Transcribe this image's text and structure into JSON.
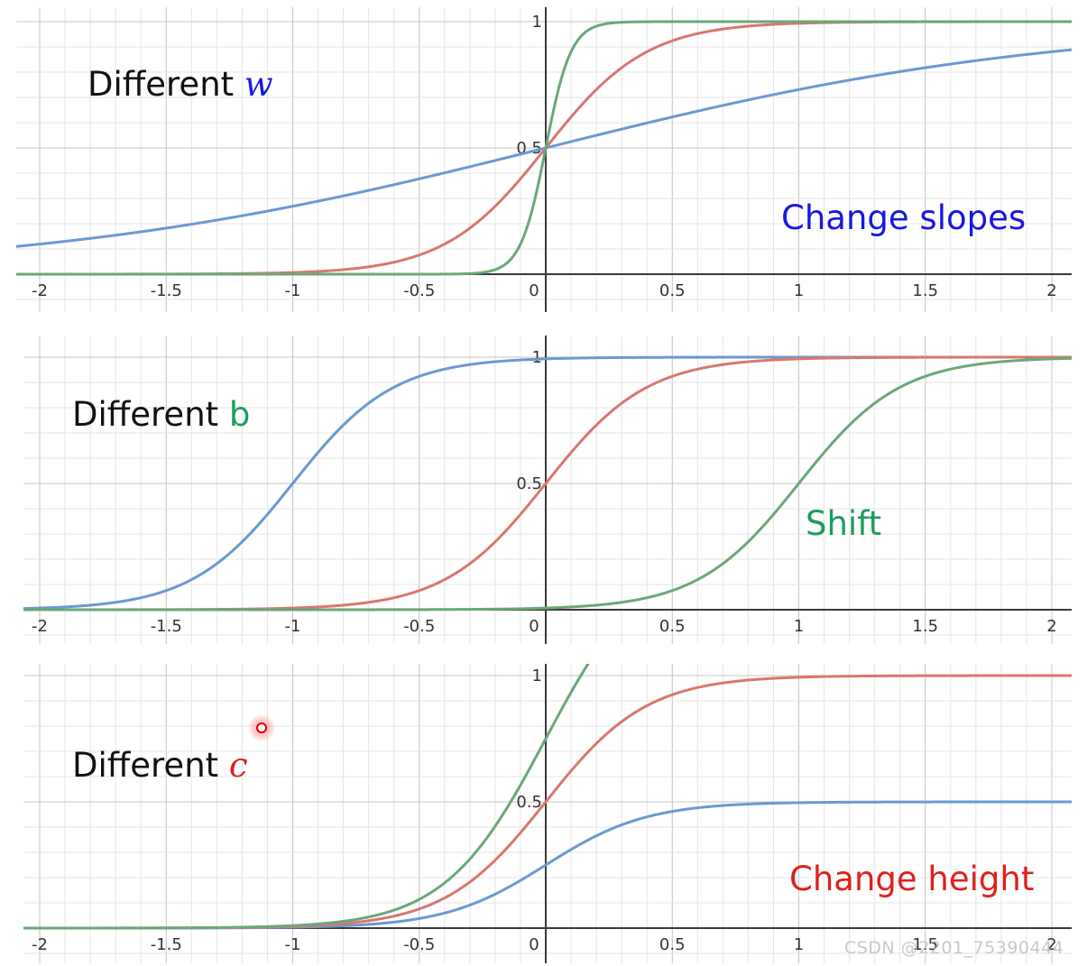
{
  "chart_data": [
    {
      "type": "line",
      "annotation": "Change slopes",
      "label_prefix": "Different ",
      "label_var": "w",
      "var_color": "#1818e0",
      "annotation_color": "#1818e0",
      "xlim": [
        -2.1,
        2.1
      ],
      "ylim": [
        0,
        1
      ],
      "x_ticks": [
        "-2",
        "-1.5",
        "-1",
        "-0.5",
        "0",
        "0.5",
        "1",
        "1.5",
        "2"
      ],
      "y_ticks": [
        "0.5",
        "1"
      ],
      "grid": true,
      "series": [
        {
          "color": "#6a99d0",
          "params": {
            "c": 1,
            "b": 0,
            "w": 1
          }
        },
        {
          "color": "#d9776f",
          "params": {
            "c": 1,
            "b": 0,
            "w": 5
          }
        },
        {
          "color": "#6aa77a",
          "params": {
            "c": 1,
            "b": 0,
            "w": 20
          }
        }
      ]
    },
    {
      "type": "line",
      "annotation": "Shift",
      "label_prefix": "Different ",
      "label_var": "b",
      "var_color": "#1f9b5c",
      "annotation_color": "#1f9b5c",
      "xlim": [
        -2.1,
        2.1
      ],
      "ylim": [
        0,
        1
      ],
      "x_ticks": [
        "-2",
        "-1.5",
        "-1",
        "-0.5",
        "0",
        "0.5",
        "1",
        "1.5",
        "2"
      ],
      "y_ticks": [
        "0.5",
        "1"
      ],
      "grid": true,
      "series": [
        {
          "color": "#6a99d0",
          "params": {
            "c": 1,
            "b": 5,
            "w": 5
          }
        },
        {
          "color": "#d9776f",
          "params": {
            "c": 1,
            "b": 0,
            "w": 5
          }
        },
        {
          "color": "#6aa77a",
          "params": {
            "c": 1,
            "b": -5,
            "w": 5
          }
        }
      ]
    },
    {
      "type": "line",
      "annotation": "Change height",
      "label_prefix": "Different ",
      "label_var": "c",
      "var_color": "#e0201a",
      "annotation_color": "#e0201a",
      "xlim": [
        -2.1,
        2.1
      ],
      "ylim": [
        0,
        1
      ],
      "x_ticks": [
        "-2",
        "-1.5",
        "-1",
        "-0.5",
        "0",
        "0.5",
        "1",
        "1.5",
        "2"
      ],
      "y_ticks": [
        "0.5",
        "1"
      ],
      "grid": true,
      "series": [
        {
          "color": "#6a99d0",
          "params": {
            "c": 0.5,
            "b": 0,
            "w": 5
          }
        },
        {
          "color": "#d9776f",
          "params": {
            "c": 1,
            "b": 0,
            "w": 5
          }
        },
        {
          "color": "#6aa77a",
          "params": {
            "c": 1.5,
            "b": 0,
            "w": 5
          }
        }
      ]
    }
  ],
  "watermark": "CSDN @2201_75390444"
}
